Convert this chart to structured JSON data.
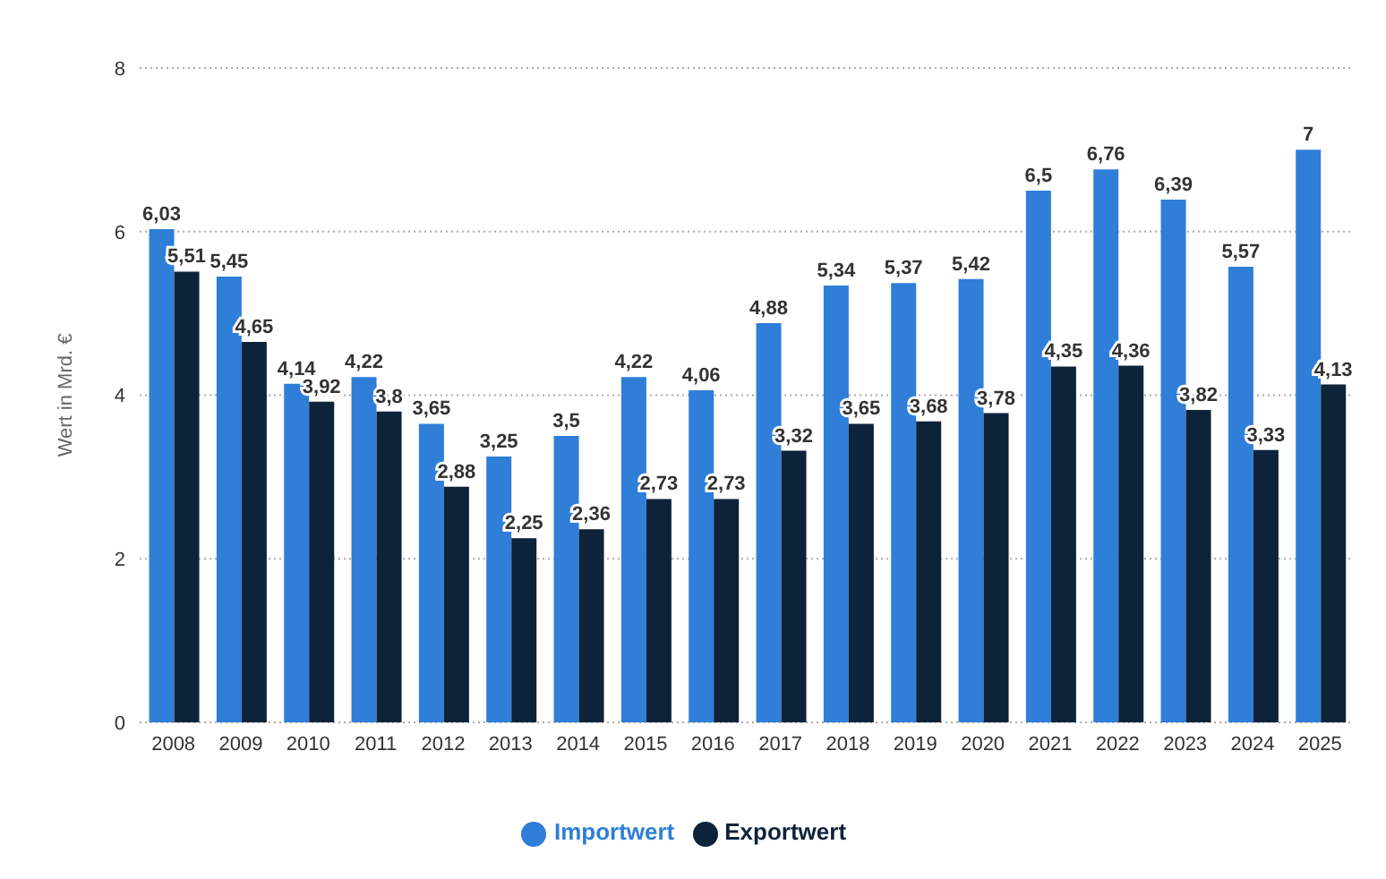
{
  "chart_data": {
    "type": "bar",
    "ylabel": "Wert in Mrd. €",
    "categories": [
      "2008",
      "2009",
      "2010",
      "2011",
      "2012",
      "2013",
      "2014",
      "2015",
      "2016",
      "2017",
      "2018",
      "2019",
      "2020",
      "2021",
      "2022",
      "2023",
      "2024",
      "2025"
    ],
    "series": [
      {
        "name": "Importwert",
        "color": "#2f7ed8",
        "values": [
          6.03,
          5.45,
          4.14,
          4.22,
          3.65,
          3.25,
          3.5,
          4.22,
          4.06,
          4.88,
          5.34,
          5.37,
          5.42,
          6.5,
          6.76,
          6.39,
          5.57,
          7
        ],
        "value_labels": [
          "6,03",
          "5,45",
          "4,14",
          "4,22",
          "3,65",
          "3,25",
          "3,5",
          "4,22",
          "4,06",
          "4,88",
          "5,34",
          "5,37",
          "5,42",
          "6,5",
          "6,76",
          "6,39",
          "5,57",
          "7"
        ]
      },
      {
        "name": "Exportwert",
        "color": "#0d233a",
        "values": [
          5.51,
          4.65,
          3.92,
          3.8,
          2.88,
          2.25,
          2.36,
          2.73,
          2.73,
          3.32,
          3.65,
          3.68,
          3.78,
          4.35,
          4.36,
          3.82,
          3.33,
          4.13
        ],
        "value_labels": [
          "5,51",
          "4,65",
          "3,92",
          "3,8",
          "2,88",
          "2,25",
          "2,36",
          "2,73",
          "2,73",
          "3,32",
          "3,65",
          "3,68",
          "3,78",
          "4,35",
          "4,36",
          "3,82",
          "3,33",
          "4,13"
        ]
      }
    ],
    "ylim": [
      0,
      8
    ],
    "yticks": [
      0,
      2,
      4,
      6,
      8
    ],
    "grid": "y",
    "legend": "bottom"
  }
}
